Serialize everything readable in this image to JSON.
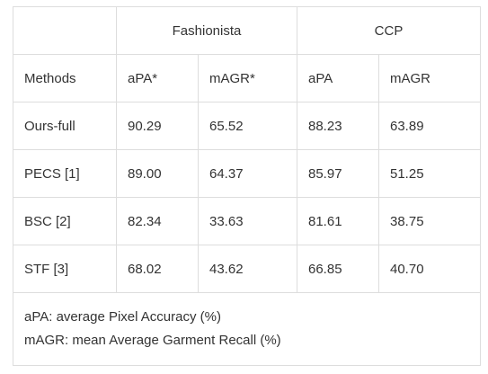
{
  "table": {
    "groups": [
      {
        "label": "",
        "span": 1
      },
      {
        "label": "Fashionista",
        "span": 2
      },
      {
        "label": "CCP",
        "span": 2
      }
    ],
    "headers": [
      "Methods",
      "aPA*",
      "mAGR*",
      "aPA",
      "mAGR"
    ],
    "rows": [
      [
        "Ours-full",
        "90.29",
        "65.52",
        "88.23",
        "63.89"
      ],
      [
        "PECS [1]",
        "89.00",
        "64.37",
        "85.97",
        "51.25"
      ],
      [
        "BSC [2]",
        "82.34",
        "33.63",
        "81.61",
        "38.75"
      ],
      [
        "STF [3]",
        "68.02",
        "43.62",
        "66.85",
        "40.70"
      ]
    ],
    "notes": [
      "aPA: average Pixel Accuracy (%)",
      "mAGR: mean Average Garment Recall (%)"
    ]
  }
}
